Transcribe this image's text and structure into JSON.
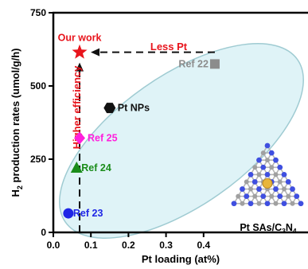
{
  "chart_data": {
    "type": "scatter",
    "xlabel": "Pt loading (at%)",
    "ylabel_main": "H",
    "ylabel_sub": "2",
    "ylabel_rest": " production rates (umol/g/h)",
    "xlim": [
      0.0,
      0.45
    ],
    "ylim": [
      0,
      750
    ],
    "xticks": [
      "0.0",
      "0.1",
      "0.2",
      "0.3",
      "0.4"
    ],
    "xtick_values": [
      0.0,
      0.1,
      0.2,
      0.3,
      0.4
    ],
    "yticks": [
      "0",
      "250",
      "500",
      "750"
    ],
    "ytick_values": [
      0,
      250,
      500,
      750
    ],
    "points": [
      {
        "label": "Our work",
        "x": 0.07,
        "y": 615,
        "marker": "star",
        "color": "#e8141c"
      },
      {
        "label": "Ref 22",
        "x": 0.43,
        "y": 575,
        "marker": "square",
        "color": "#8c8c8c"
      },
      {
        "label": "Pt NPs",
        "x": 0.15,
        "y": 425,
        "marker": "hexagon",
        "color": "#111111"
      },
      {
        "label": "Ref 25",
        "x": 0.07,
        "y": 322,
        "marker": "diamond",
        "color": "#ff1fdc"
      },
      {
        "label": "Ref 24",
        "x": 0.062,
        "y": 220,
        "marker": "triangle",
        "color": "#1a8c1a"
      },
      {
        "label": "Ref 23",
        "x": 0.04,
        "y": 65,
        "marker": "circle",
        "color": "#1f26e6"
      }
    ],
    "annotations": {
      "less_pt": "Less Pt",
      "higher_efficiency": "Higher efficiency",
      "inset_main": "Pt SAs/C",
      "inset_sub1": "3",
      "inset_mid": "N",
      "inset_sub2": "4"
    },
    "colors": {
      "annotation_red": "#e8141c",
      "ellipse_fill": "#dff3f7",
      "ellipse_stroke": "#9fcbd2",
      "lattice_n": "#3f4fe0",
      "lattice_c": "#a0a0a0",
      "lattice_pt": "#e8b53a"
    },
    "grid": false
  }
}
